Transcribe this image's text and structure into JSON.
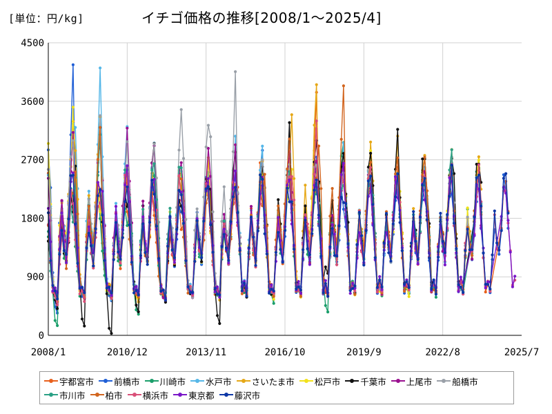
{
  "chart_data": {
    "type": "line",
    "title": "イチゴ価格の推移[2008/1～2025/4]",
    "unit_label": "[単位：円/kg]",
    "x_ticks": [
      "2008/1",
      "2010/12",
      "2013/11",
      "2016/10",
      "2019/9",
      "2022/8",
      "2025/7"
    ],
    "x_tick_dates": [
      2008.0,
      2010.917,
      2013.833,
      2016.75,
      2019.667,
      2022.583,
      2025.5
    ],
    "y_ticks": [
      0,
      900,
      1800,
      2700,
      3600,
      4500
    ],
    "xlim": [
      2008.0,
      2025.5
    ],
    "ylim": [
      0,
      4500
    ],
    "grid": {
      "x": true,
      "y": true
    },
    "legend_position": "bottom",
    "monthly_pattern": [
      1050,
      900,
      720,
      560,
      500,
      1300,
      1750,
      1400,
      1200,
      1700,
      2300,
      3000
    ],
    "series": [
      {
        "name": "宇都宮市",
        "color": "#e8601c",
        "start": 2008.0,
        "end": 2025.0,
        "peaks": [
          3100,
          2200,
          1900,
          2000,
          1800,
          2300,
          2200,
          2700,
          2400,
          3400,
          2200,
          2400
        ],
        "troughs": [
          500,
          600,
          560,
          600,
          560,
          650,
          600,
          700,
          650,
          700,
          650,
          700
        ]
      },
      {
        "name": "前橋市",
        "color": "#1f5fd6",
        "start": 2008.0,
        "end": 2025.0,
        "peaks": [
          3800,
          3000,
          2700,
          2400,
          2000,
          2400,
          2300,
          2600,
          2300,
          2500,
          2100,
          2300
        ],
        "troughs": [
          350,
          560,
          520,
          580,
          560,
          620,
          600,
          650,
          620,
          680,
          640,
          700
        ]
      },
      {
        "name": "川崎市",
        "color": "#1a9e6a",
        "start": 2008.0,
        "end": 2024.0,
        "peaks": [
          2000,
          1800,
          1700,
          2600,
          2000,
          2100,
          2200,
          2400,
          2200,
          2300,
          3200,
          2700,
          2500
        ],
        "troughs": [
          150,
          600,
          550,
          350,
          600,
          620,
          600,
          650,
          500,
          650,
          350,
          700,
          650
        ]
      },
      {
        "name": "水戸市",
        "color": "#55b7e8",
        "start": 2008.0,
        "end": 2024.0,
        "peaks": [
          3300,
          3800,
          3250,
          2800,
          2500,
          2400,
          2800,
          2700,
          2600,
          2500,
          2900,
          2500
        ],
        "troughs": [
          600,
          650,
          600,
          620,
          600,
          650,
          620,
          700,
          680,
          700,
          650,
          720
        ]
      },
      {
        "name": "さいたま市",
        "color": "#e6a817",
        "start": 2008.0,
        "end": 2024.0,
        "peaks": [
          3500,
          3700,
          2500,
          2400,
          2500,
          2600,
          2400,
          2500,
          2400,
          4150,
          2500,
          2800
        ],
        "troughs": [
          580,
          600,
          700,
          550,
          560,
          600,
          600,
          640,
          620,
          680,
          650,
          700
        ]
      },
      {
        "name": "松戸市",
        "color": "#f2e21a",
        "start": 2008.0,
        "end": 2024.0,
        "peaks": [
          3600,
          2000,
          2300,
          2200,
          2500,
          2300,
          2200,
          2300,
          2400,
          3300,
          2300,
          2600
        ],
        "troughs": [
          600,
          620,
          600,
          560,
          600,
          640,
          580,
          620,
          600,
          640,
          600,
          650
        ]
      },
      {
        "name": "千葉市",
        "color": "#111111",
        "start": 2008.0,
        "end": 2024.0,
        "peaks": [
          2000,
          3100,
          2100,
          2800,
          2200,
          2500,
          2800,
          2600,
          3100,
          2800,
          2900,
          2900
        ],
        "troughs": [
          450,
          150,
          30,
          350,
          560,
          600,
          200,
          650,
          600,
          650,
          1000,
          700
        ]
      },
      {
        "name": "上尾市",
        "color": "#990f8f",
        "start": 2008.0,
        "end": 2024.0,
        "peaks": [
          3000,
          2800,
          2900,
          3000,
          2500,
          2700,
          2900,
          2700,
          2900,
          2600,
          2400,
          2400
        ],
        "troughs": [
          500,
          560,
          600,
          600,
          560,
          600,
          620,
          640,
          650,
          650,
          640,
          700
        ]
      },
      {
        "name": "船橋市",
        "color": "#9aa0a8",
        "start": 2008.0,
        "end": 2024.0,
        "peaks": [
          3300,
          3100,
          3000,
          2700,
          3200,
          3500,
          3800,
          3000,
          2700,
          2600,
          2400,
          2500
        ],
        "troughs": [
          550,
          560,
          600,
          650,
          620,
          640,
          620,
          650,
          650,
          660,
          640,
          700
        ]
      },
      {
        "name": "市川市",
        "color": "#2aa085",
        "start": 2008.0,
        "end": 2024.0,
        "peaks": [
          1900,
          3100,
          2500,
          2600,
          2700,
          2200,
          2200,
          2400,
          2300,
          2300,
          2300,
          2600
        ],
        "troughs": [
          600,
          620,
          600,
          640,
          600,
          640,
          620,
          650,
          650,
          660,
          650,
          700
        ]
      },
      {
        "name": "柏市",
        "color": "#d2651f",
        "start": 2008.0,
        "end": 2024.0,
        "peaks": [
          2100,
          3150,
          2400,
          2100,
          2400,
          2100,
          2100,
          2200,
          2900,
          2300,
          4100,
          2600
        ],
        "troughs": [
          560,
          600,
          620,
          560,
          600,
          620,
          600,
          650,
          640,
          650,
          630,
          700
        ]
      },
      {
        "name": "横浜市",
        "color": "#d94f78",
        "start": 2008.0,
        "end": 2025.33,
        "peaks": [
          2000,
          2000,
          2300,
          2100,
          2300,
          2300,
          2100,
          2200,
          2300,
          3450,
          2300,
          2400
        ],
        "troughs": [
          500,
          560,
          580,
          600,
          560,
          620,
          600,
          650,
          650,
          660,
          640,
          700
        ]
      },
      {
        "name": "東京都",
        "color": "#7a16c8",
        "start": 2008.0,
        "end": 2025.33,
        "peaks": [
          2500,
          2300,
          2600,
          2400,
          2200,
          2200,
          2300,
          2300,
          2200,
          2300,
          2500,
          2300
        ],
        "troughs": [
          600,
          620,
          640,
          650,
          620,
          660,
          650,
          680,
          680,
          700,
          700,
          750
        ]
      },
      {
        "name": "藤沢市",
        "color": "#0d37a6",
        "start": 2008.0,
        "end": 2025.0,
        "peaks": [
          2300,
          2200,
          2200,
          2100,
          2200,
          2200,
          2200,
          2300,
          2200,
          2500,
          2200,
          2400
        ],
        "troughs": [
          560,
          600,
          600,
          620,
          600,
          620,
          620,
          660,
          650,
          670,
          650,
          700
        ]
      }
    ]
  }
}
